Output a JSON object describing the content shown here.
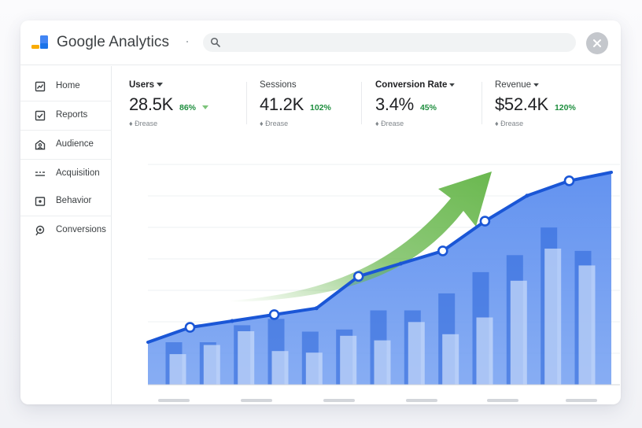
{
  "app": {
    "title": "Google Analytics",
    "search_placeholder": "",
    "accent": "#1a56d6"
  },
  "sidebar": {
    "items": [
      {
        "label": "Home",
        "icon": "trend-chart-icon"
      },
      {
        "label": "Reports",
        "icon": "check-box-icon"
      },
      {
        "label": "Audience",
        "icon": "audience-icon"
      },
      {
        "label": "Acquisition",
        "icon": "acquisition-icon"
      },
      {
        "label": "Behavior",
        "icon": "behavior-icon"
      },
      {
        "label": "Conversions",
        "icon": "conversions-icon"
      }
    ]
  },
  "metrics": [
    {
      "title": "Users",
      "value": "28.5K",
      "change": "86%",
      "sub": "♦ Ðrease",
      "has_dropdown": true
    },
    {
      "title": "Sessions",
      "value": "41.2K",
      "change": "102%",
      "sub": "♦ Ðrease",
      "has_dropdown": false
    },
    {
      "title": "Conversion Rate",
      "value": "3.4%",
      "change": "45%",
      "sub": "♦ Ðrease",
      "has_dropdown": true
    },
    {
      "title": "Revenue",
      "value": "$52.4K",
      "change": "120%",
      "sub": "♦ Ðrease",
      "has_dropdown": true
    }
  ],
  "chart_data": {
    "type": "line",
    "title": "",
    "xlabel": "",
    "ylabel": "",
    "x": [
      0,
      1,
      2,
      3,
      4,
      5,
      6,
      7,
      8,
      9,
      10,
      11
    ],
    "ylim": [
      0,
      100
    ],
    "grid": true,
    "series": [
      {
        "values": [
          20,
          27,
          30,
          33,
          36,
          51,
          57,
          63,
          77,
          89,
          96,
          100
        ]
      }
    ],
    "marker_points": [
      1,
      3,
      5,
      7,
      8,
      10
    ],
    "bars": [
      [
        20,
        20
      ],
      [
        20,
        26
      ],
      [
        28,
        35
      ],
      [
        31,
        22
      ],
      [
        25,
        21
      ],
      [
        26,
        32
      ],
      [
        35,
        29
      ],
      [
        35,
        41
      ],
      [
        43,
        33
      ],
      [
        53,
        44
      ],
      [
        61,
        68
      ],
      [
        74,
        89
      ],
      [
        63,
        78
      ]
    ],
    "trend_arrow": true,
    "colors": {
      "line": "#1a56d6",
      "area": "#6c9af0",
      "bar_dark": "#2a64d8",
      "bar_light": "#c7dafa",
      "arrow": "#6ab84f"
    }
  }
}
